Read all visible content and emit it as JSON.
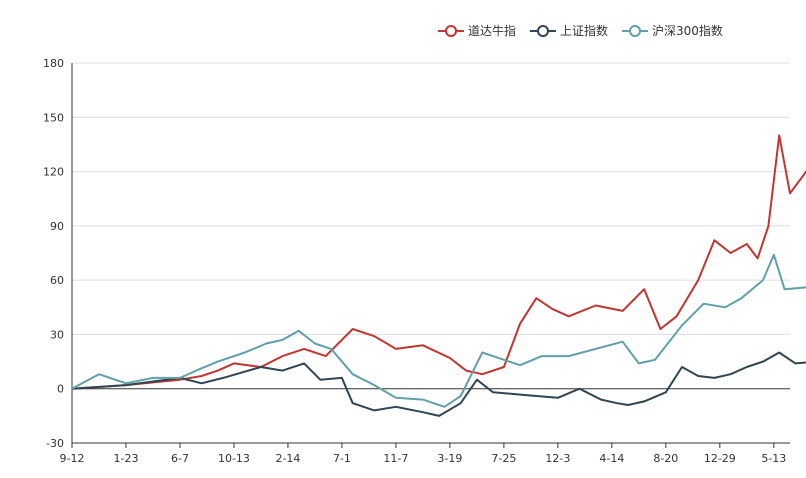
{
  "chart_data": {
    "type": "line",
    "x_categories": [
      "9-12",
      "1-23",
      "6-7",
      "10-13",
      "2-14",
      "7-1",
      "11-7",
      "3-19",
      "7-25",
      "12-3",
      "4-14",
      "8-20",
      "12-29",
      "5-13"
    ],
    "ylim": [
      -30,
      180
    ],
    "yticks": [
      "180",
      "150",
      "120",
      "90",
      "60",
      "30",
      "0",
      "-30"
    ],
    "ytick_values": [
      180,
      150,
      120,
      90,
      60,
      30,
      0,
      -30
    ],
    "grid": "horizontal",
    "legend_position": "top-right",
    "series": [
      {
        "name": "道达牛指",
        "color": "#c23531",
        "values": [
          [
            0,
            0
          ],
          [
            1,
            2
          ],
          [
            2,
            5
          ],
          [
            2.4,
            7
          ],
          [
            2.7,
            10
          ],
          [
            3,
            14
          ],
          [
            3.5,
            12
          ],
          [
            3.9,
            18
          ],
          [
            4.3,
            22
          ],
          [
            4.7,
            18
          ],
          [
            5.2,
            33
          ],
          [
            5.6,
            29
          ],
          [
            6,
            22
          ],
          [
            6.5,
            24
          ],
          [
            7,
            17
          ],
          [
            7.3,
            10
          ],
          [
            7.6,
            8
          ],
          [
            8.0,
            12
          ],
          [
            8.3,
            36
          ],
          [
            8.6,
            50
          ],
          [
            8.9,
            44
          ],
          [
            9.2,
            40
          ],
          [
            9.7,
            46
          ],
          [
            10.2,
            43
          ],
          [
            10.6,
            55
          ],
          [
            10.9,
            33
          ],
          [
            11.2,
            40
          ],
          [
            11.6,
            60
          ],
          [
            11.9,
            82
          ],
          [
            12.2,
            75
          ],
          [
            12.5,
            80
          ],
          [
            12.7,
            72
          ],
          [
            12.9,
            90
          ],
          [
            13.1,
            140
          ],
          [
            13.3,
            108
          ],
          [
            13.6,
            120
          ],
          [
            13.9,
            128
          ],
          [
            14.2,
            130
          ],
          [
            14.3,
            136
          ]
        ]
      },
      {
        "name": "上证指数",
        "color": "#2f4554",
        "values": [
          [
            0,
            0
          ],
          [
            1,
            2
          ],
          [
            2,
            6
          ],
          [
            2.4,
            3
          ],
          [
            2.8,
            6
          ],
          [
            3.5,
            12
          ],
          [
            3.9,
            10
          ],
          [
            4.3,
            14
          ],
          [
            4.6,
            5
          ],
          [
            5,
            6
          ],
          [
            5.2,
            -8
          ],
          [
            5.6,
            -12
          ],
          [
            6,
            -10
          ],
          [
            6.5,
            -13
          ],
          [
            6.8,
            -15
          ],
          [
            7.2,
            -8
          ],
          [
            7.5,
            5
          ],
          [
            7.8,
            -2
          ],
          [
            8.2,
            -3
          ],
          [
            8.6,
            -4
          ],
          [
            9,
            -5
          ],
          [
            9.4,
            0
          ],
          [
            9.8,
            -6
          ],
          [
            10.1,
            -8
          ],
          [
            10.3,
            -9
          ],
          [
            10.6,
            -7
          ],
          [
            11.0,
            -2
          ],
          [
            11.3,
            12
          ],
          [
            11.6,
            7
          ],
          [
            11.9,
            6
          ],
          [
            12.2,
            8
          ],
          [
            12.5,
            12
          ],
          [
            12.8,
            15
          ],
          [
            13.1,
            20
          ],
          [
            13.4,
            14
          ],
          [
            13.8,
            15
          ],
          [
            14.1,
            17
          ],
          [
            14.3,
            18
          ]
        ]
      },
      {
        "name": "沪深300指数",
        "color": "#61a0a8",
        "values": [
          [
            0,
            0
          ],
          [
            0.5,
            8
          ],
          [
            1,
            3
          ],
          [
            1.5,
            6
          ],
          [
            2,
            6
          ],
          [
            2.3,
            10
          ],
          [
            2.7,
            15
          ],
          [
            3.2,
            20
          ],
          [
            3.6,
            25
          ],
          [
            3.9,
            27
          ],
          [
            4.2,
            32
          ],
          [
            4.5,
            25
          ],
          [
            4.8,
            22
          ],
          [
            5.2,
            8
          ],
          [
            5.6,
            2
          ],
          [
            6,
            -5
          ],
          [
            6.5,
            -6
          ],
          [
            6.9,
            -10
          ],
          [
            7.2,
            -4
          ],
          [
            7.6,
            20
          ],
          [
            8,
            16
          ],
          [
            8.3,
            13
          ],
          [
            8.7,
            18
          ],
          [
            9.2,
            18
          ],
          [
            9.7,
            22
          ],
          [
            10.2,
            26
          ],
          [
            10.5,
            14
          ],
          [
            10.8,
            16
          ],
          [
            11.3,
            35
          ],
          [
            11.7,
            47
          ],
          [
            12.1,
            45
          ],
          [
            12.4,
            50
          ],
          [
            12.8,
            60
          ],
          [
            13,
            74
          ],
          [
            13.2,
            55
          ],
          [
            13.6,
            56
          ],
          [
            13.9,
            60
          ],
          [
            14.1,
            62
          ],
          [
            14.3,
            59
          ]
        ]
      }
    ]
  }
}
